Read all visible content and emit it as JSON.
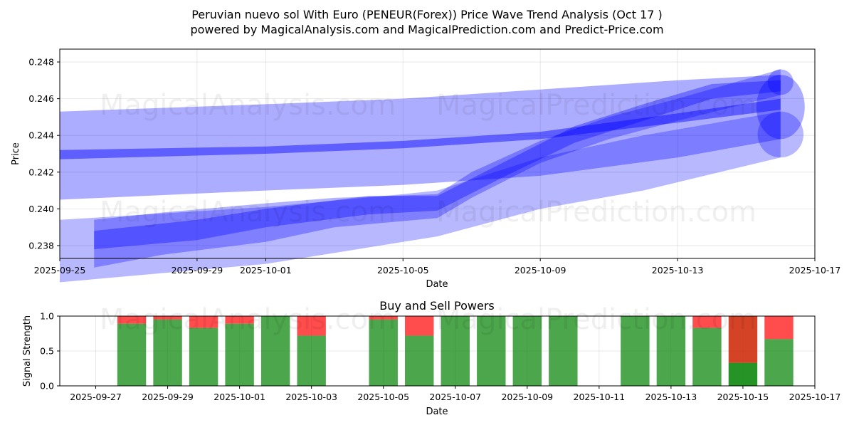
{
  "title_line1": "Peruvian nuevo sol With Euro (PENEUR(Forex)) Price Wave Trend Analysis (Oct 17 )",
  "title_line2": "powered by MagicalAnalysis.com and MagicalPrediction.com and Predict-Price.com",
  "watermarks": [
    "MagicalAnalysis.com",
    "MagicalPrediction.com"
  ],
  "colors": {
    "band": "#0000ff",
    "buy": "#008000",
    "sell": "#ff0000",
    "sell_strong": "#cc2200"
  },
  "chart_data": [
    {
      "type": "area",
      "name": "price-wave",
      "xlabel": "Date",
      "ylabel": "Price",
      "x_ticks": [
        "2025-09-25",
        "2025-09-29",
        "2025-10-01",
        "2025-10-05",
        "2025-10-09",
        "2025-10-13",
        "2025-10-17"
      ],
      "y_ticks": [
        "0.238",
        "0.240",
        "0.242",
        "0.244",
        "0.246",
        "0.248"
      ],
      "ylim": [
        0.2373,
        0.2487
      ],
      "xlim": [
        "2025-09-25",
        "2025-10-17"
      ],
      "grid": true,
      "bands": [
        {
          "x": [
            "2025-09-25",
            "2025-10-01",
            "2025-10-05",
            "2025-10-09",
            "2025-10-13",
            "2025-10-16"
          ],
          "upper": [
            0.2453,
            0.2457,
            0.246,
            0.2465,
            0.247,
            0.2473
          ],
          "lower": [
            0.2405,
            0.241,
            0.2413,
            0.2418,
            0.2428,
            0.2438
          ]
        },
        {
          "x": [
            "2025-09-25",
            "2025-10-01",
            "2025-10-05",
            "2025-10-09",
            "2025-10-13",
            "2025-10-16"
          ],
          "upper": [
            0.2432,
            0.2434,
            0.2437,
            0.2442,
            0.2452,
            0.246
          ],
          "lower": [
            0.2427,
            0.243,
            0.2433,
            0.2438,
            0.2447,
            0.2454
          ]
        },
        {
          "x": [
            "2025-09-26",
            "2025-09-28",
            "2025-10-01",
            "2025-10-03",
            "2025-10-06",
            "2025-10-07",
            "2025-10-09",
            "2025-10-11",
            "2025-10-13",
            "2025-10-16"
          ],
          "upper": [
            0.2394,
            0.2398,
            0.2403,
            0.2406,
            0.2408,
            0.242,
            0.2437,
            0.245,
            0.246,
            0.2476
          ],
          "lower": [
            0.2368,
            0.2375,
            0.2382,
            0.239,
            0.2395,
            0.2406,
            0.2425,
            0.2438,
            0.2448,
            0.2462
          ]
        },
        {
          "x": [
            "2025-09-26",
            "2025-09-29",
            "2025-10-01",
            "2025-10-04",
            "2025-10-06",
            "2025-10-08",
            "2025-10-10",
            "2025-10-12",
            "2025-10-14",
            "2025-10-16"
          ],
          "upper": [
            0.2388,
            0.2394,
            0.24,
            0.2407,
            0.2407,
            0.2426,
            0.2445,
            0.2457,
            0.2468,
            0.247
          ],
          "lower": [
            0.2378,
            0.2383,
            0.239,
            0.2397,
            0.2399,
            0.2418,
            0.2436,
            0.2448,
            0.246,
            0.2464
          ]
        },
        {
          "x": [
            "2025-09-25",
            "2025-10-01",
            "2025-10-05",
            "2025-10-06",
            "2025-10-09",
            "2025-10-12",
            "2025-10-16"
          ],
          "upper": [
            0.2394,
            0.2401,
            0.2408,
            0.241,
            0.2428,
            0.244,
            0.2453
          ],
          "lower": [
            0.236,
            0.237,
            0.2382,
            0.2385,
            0.24,
            0.241,
            0.2428
          ]
        }
      ]
    },
    {
      "type": "bar",
      "name": "buy-sell-powers",
      "title": "Buy and Sell Powers",
      "xlabel": "Date",
      "ylabel": "Signal Strength",
      "x_ticks": [
        "2025-09-27",
        "2025-09-29",
        "2025-10-01",
        "2025-10-03",
        "2025-10-05",
        "2025-10-07",
        "2025-10-09",
        "2025-10-11",
        "2025-10-13",
        "2025-10-15",
        "2025-10-17"
      ],
      "y_ticks": [
        "0.0",
        "0.5",
        "1.0"
      ],
      "ylim": [
        0,
        1
      ],
      "xlim": [
        "2025-09-26",
        "2025-10-17"
      ],
      "grid": true,
      "bars": [
        {
          "date": "2025-09-28",
          "buy": 0.89
        },
        {
          "date": "2025-09-29",
          "buy": 0.95
        },
        {
          "date": "2025-09-30",
          "buy": 0.83
        },
        {
          "date": "2025-10-01",
          "buy": 0.89
        },
        {
          "date": "2025-10-02",
          "buy": 1.0
        },
        {
          "date": "2025-10-03",
          "buy": 0.72
        },
        {
          "date": "2025-10-05",
          "buy": 0.95
        },
        {
          "date": "2025-10-06",
          "buy": 0.72
        },
        {
          "date": "2025-10-07",
          "buy": 1.0
        },
        {
          "date": "2025-10-08",
          "buy": 1.0
        },
        {
          "date": "2025-10-09",
          "buy": 1.0
        },
        {
          "date": "2025-10-10",
          "buy": 1.0
        },
        {
          "date": "2025-10-12",
          "buy": 1.0
        },
        {
          "date": "2025-10-13",
          "buy": 1.0
        },
        {
          "date": "2025-10-14",
          "buy": 0.83
        },
        {
          "date": "2025-10-15",
          "buy": 0.33,
          "strong_sell": true
        },
        {
          "date": "2025-10-16",
          "buy": 0.67
        }
      ]
    }
  ]
}
